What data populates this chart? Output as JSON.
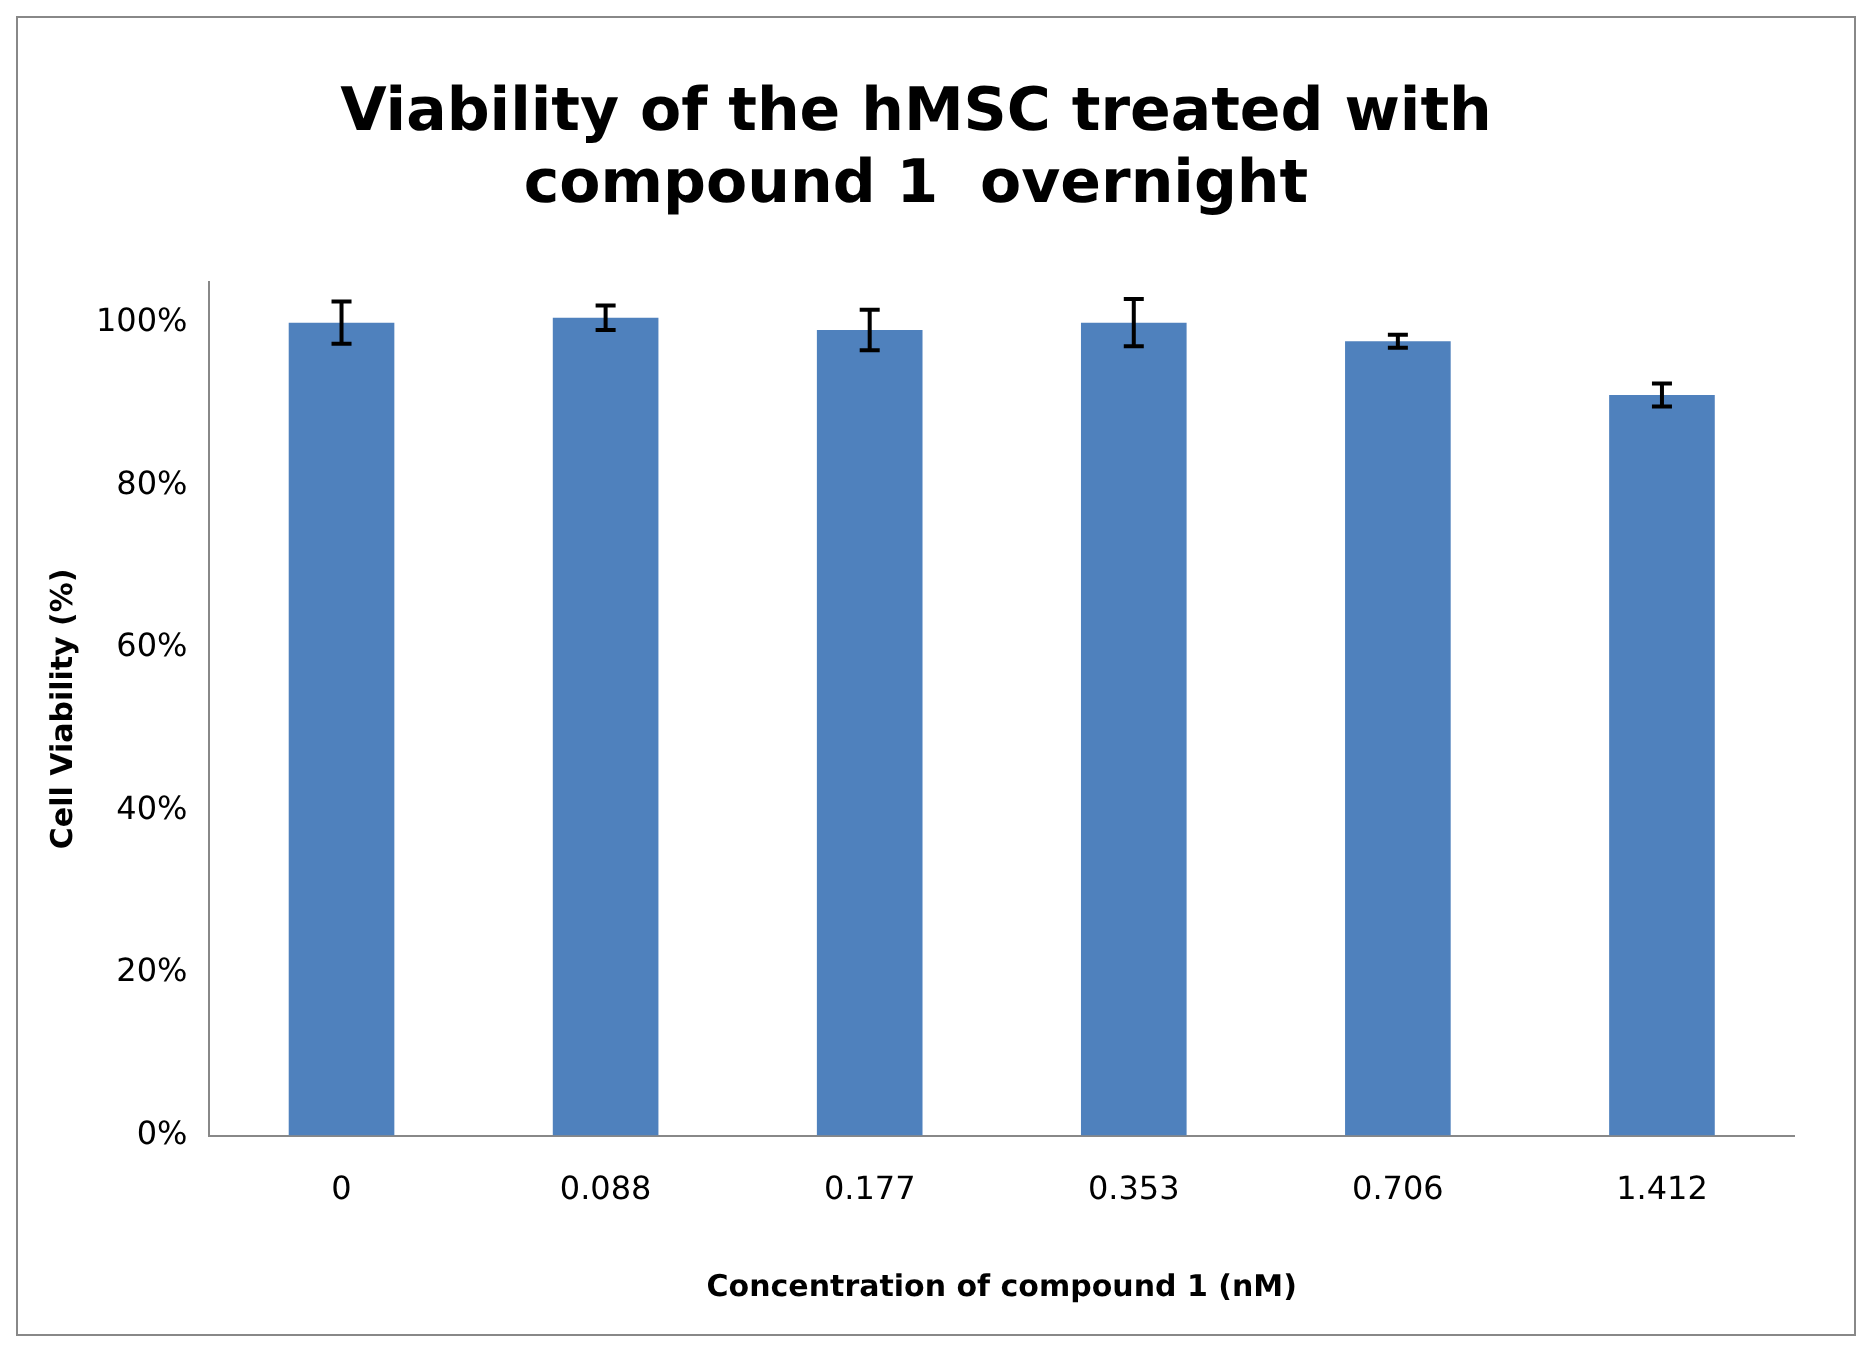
{
  "chart_data": {
    "type": "bar",
    "title": "Viability of the hMSC treated with compound 1  overnight",
    "xlabel": "Concentration of compound 1 (nM)",
    "ylabel": "Cell Viability (%)",
    "categories": [
      "0",
      "0.088",
      "0.177",
      "0.353",
      "0.706",
      "1.412"
    ],
    "values": [
      100,
      100.6,
      99.1,
      100,
      97.7,
      91.1
    ],
    "errors": [
      2.6,
      1.5,
      2.5,
      2.9,
      0.8,
      1.4
    ],
    "color": "#4f81bd",
    "ylim": [
      0,
      105
    ],
    "yticks": [
      {
        "value": 0,
        "label": "0%"
      },
      {
        "value": 20,
        "label": "20%"
      },
      {
        "value": 40,
        "label": "40%"
      },
      {
        "value": 60,
        "label": "60%"
      },
      {
        "value": 80,
        "label": "80%"
      },
      {
        "value": 100,
        "label": "100%"
      }
    ],
    "grid": false
  }
}
